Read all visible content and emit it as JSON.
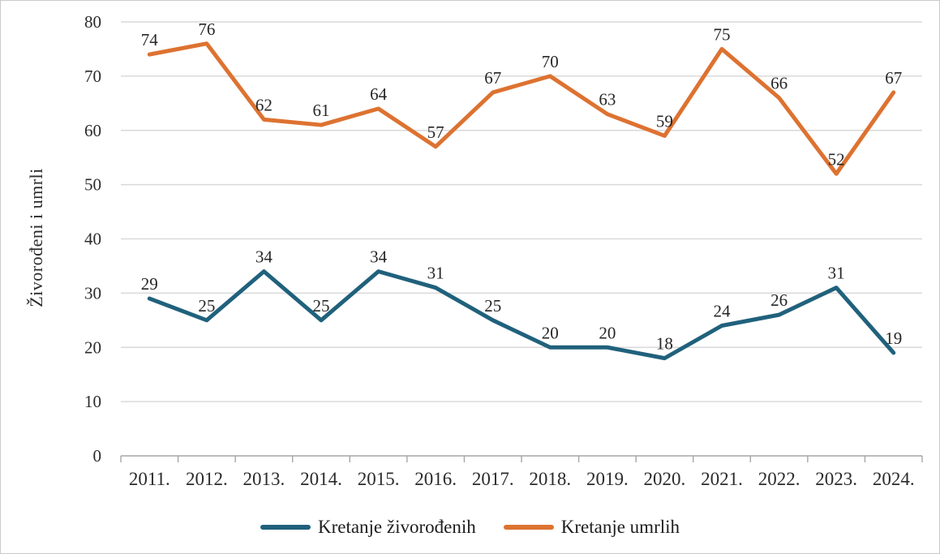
{
  "chart_data": {
    "type": "line",
    "title": "",
    "xlabel": "",
    "ylabel": "Živorođeni i umrli",
    "categories": [
      "2011.",
      "2012.",
      "2013.",
      "2014.",
      "2015.",
      "2016.",
      "2017.",
      "2018.",
      "2019.",
      "2020.",
      "2021.",
      "2022.",
      "2023.",
      "2024."
    ],
    "series": [
      {
        "name": "Kretanje živorođenih",
        "color": "#20617C",
        "values": [
          29,
          25,
          34,
          25,
          34,
          31,
          25,
          20,
          20,
          18,
          24,
          26,
          31,
          19
        ]
      },
      {
        "name": "Kretanje umrlih",
        "color": "#DD7231",
        "values": [
          74,
          76,
          62,
          61,
          64,
          57,
          67,
          70,
          63,
          59,
          75,
          66,
          52,
          67
        ]
      }
    ],
    "ylim": [
      0,
      80
    ],
    "ytick_step": 10,
    "yticks": [
      0,
      10,
      20,
      30,
      40,
      50,
      60,
      70,
      80
    ],
    "grid": true,
    "legend_position": "bottom",
    "data_labels": true
  },
  "colors": {
    "gridline": "#d9d9d9",
    "axis": "#a6a6a6",
    "tick_text": "#2b2b2b",
    "data_label_text": "#262626"
  }
}
